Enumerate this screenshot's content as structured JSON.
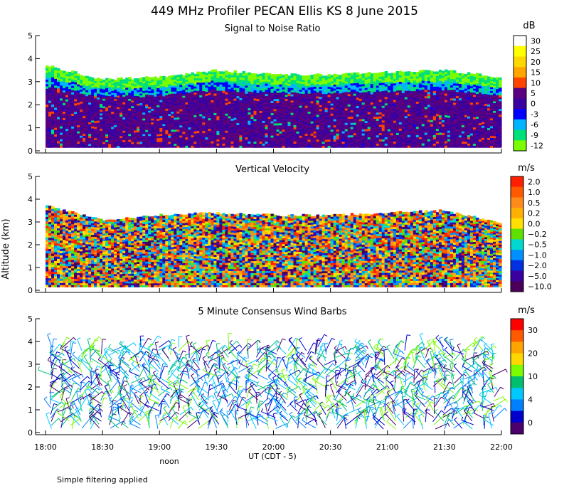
{
  "figure": {
    "title": "449 MHz Profiler PECAN Ellis KS  8 June 2015",
    "ylabel": "Altitude (km)",
    "xlabel": "UT  (CDT - 5)",
    "noon_label": "noon",
    "footnote": "Simple filtering applied"
  },
  "chart_data": [
    {
      "type": "heatmap",
      "title": "Signal to Noise Ratio",
      "units": "dB",
      "ylim": [
        0,
        5
      ],
      "yticks": [
        "0",
        "1",
        "2",
        "3",
        "4",
        "5"
      ],
      "xticks": [
        "18:00",
        "18:30",
        "19:00",
        "19:30",
        "20:00",
        "20:30",
        "21:00",
        "21:30",
        "22:00"
      ],
      "colorbar_labels": [
        "30",
        "25",
        "20",
        "15",
        "10",
        "5",
        "0",
        "-3",
        "-6",
        "-9",
        "-12"
      ],
      "colorbar_colors": [
        "#ffffff",
        "#ffff00",
        "#ffd700",
        "#ffa500",
        "#ff4500",
        "#5a007f",
        "#3a00a0",
        "#0000ff",
        "#00b4ff",
        "#00e07a",
        "#7cfc00"
      ],
      "top_height_km": [
        3.7,
        3.1,
        3.2,
        3.5,
        3.3,
        3.3,
        3.4,
        3.5,
        3.2
      ],
      "xticklabels": [
        "18:00",
        "18:30",
        "19:00",
        "19:30",
        "20:00",
        "20:30",
        "21:00",
        "21:30",
        "22:00"
      ]
    },
    {
      "type": "heatmap",
      "title": "Vertical Velocity",
      "units": "m/s",
      "ylim": [
        0,
        5
      ],
      "yticks": [
        "0",
        "1",
        "2",
        "3",
        "4",
        "5"
      ],
      "colorbar_labels": [
        "2.0",
        "1.0",
        "0.5",
        "0.2",
        "0.0",
        "−0.2",
        "−0.5",
        "−1.0",
        "−2.0",
        "−5.0",
        "−10.0"
      ],
      "colorbar_colors": [
        "#ff2000",
        "#ff5a00",
        "#ff8c1a",
        "#ffb000",
        "#ffe000",
        "#60e000",
        "#00d8d0",
        "#0090ff",
        "#0030e0",
        "#3a00a0",
        "#4a005a"
      ],
      "top_height_km": [
        3.7,
        3.1,
        3.3,
        3.4,
        3.3,
        3.3,
        3.4,
        3.5,
        3.0
      ]
    },
    {
      "type": "barbs",
      "title": "5 Minute Consensus Wind Barbs",
      "units": "m/s",
      "ylim": [
        0,
        5
      ],
      "yticks": [
        "0",
        "1",
        "2",
        "3",
        "4",
        "5"
      ],
      "colorbar_labels": [
        "30",
        "20",
        "10",
        "4",
        "0"
      ],
      "colorbar_colors": [
        "#ff0000",
        "#ff5a00",
        "#ffa500",
        "#ffd700",
        "#7cfc00",
        "#00c070",
        "#00c8ff",
        "#0080ff",
        "#0000cc",
        "#4b006e"
      ]
    }
  ]
}
